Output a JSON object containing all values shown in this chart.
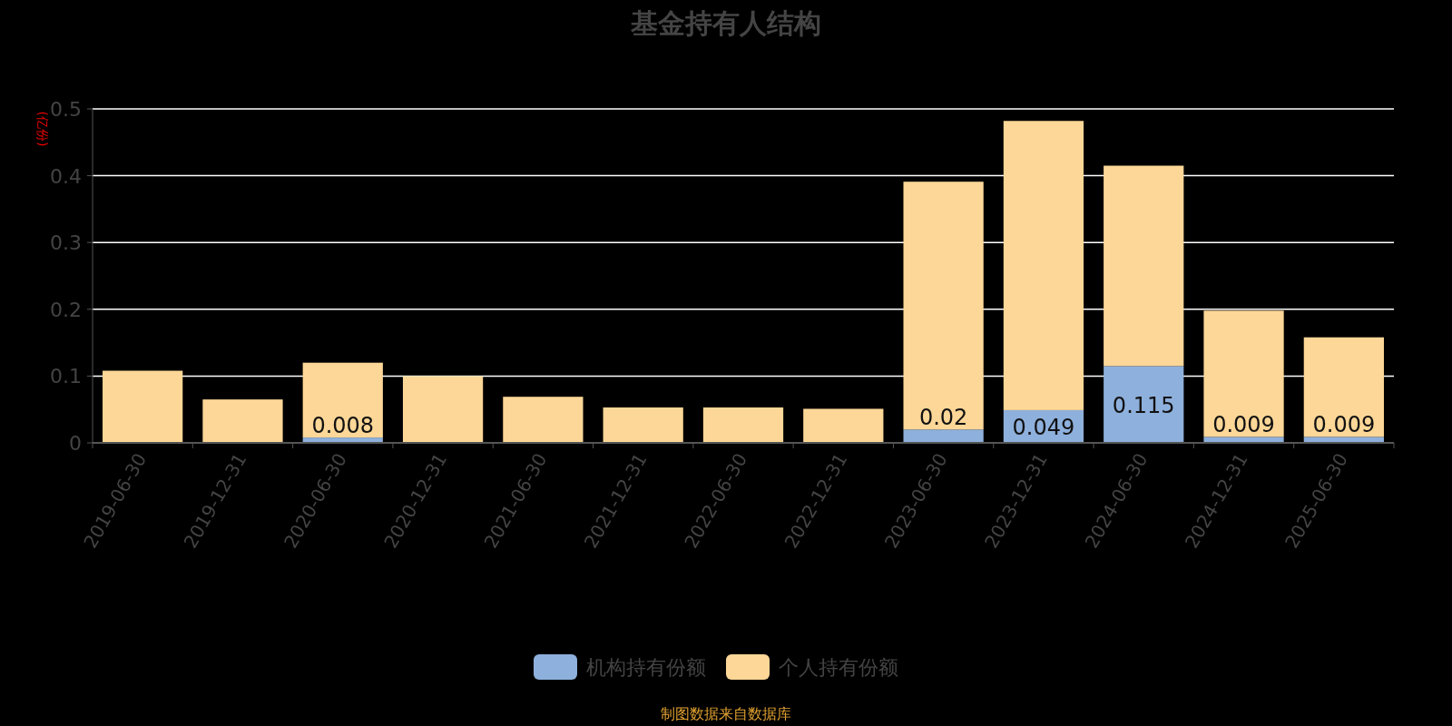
{
  "chart_data": {
    "type": "bar",
    "title": "基金持有人结构",
    "ylabel": "(亿份)",
    "categories": [
      "2019-06-30",
      "2019-12-31",
      "2020-06-30",
      "2020-12-31",
      "2021-06-30",
      "2021-12-31",
      "2022-06-30",
      "2022-12-31",
      "2023-06-30",
      "2023-12-31",
      "2024-06-30",
      "2024-12-31",
      "2025-06-30"
    ],
    "stacked": true,
    "ylim": [
      0,
      0.5
    ],
    "yticks": [
      0,
      0.1,
      0.2,
      0.3,
      0.4,
      0.5
    ],
    "grid": "y",
    "legend": "bottom",
    "series": [
      {
        "name": "机构持有份额",
        "color": "#8eb0dc",
        "values": [
          null,
          null,
          0.008,
          null,
          null,
          null,
          null,
          null,
          0.02,
          0.049,
          0.115,
          0.009,
          0.009
        ],
        "value_labels": [
          null,
          null,
          "0.008",
          null,
          null,
          null,
          null,
          null,
          "0.02",
          "0.049",
          "0.115",
          "0.009",
          "0.009"
        ]
      },
      {
        "name": "个人持有份额",
        "color": "#fdd797",
        "values": [
          0.108,
          0.065,
          0.112,
          0.1,
          0.069,
          0.053,
          0.053,
          0.051,
          0.371,
          0.433,
          0.3,
          0.189,
          0.149
        ]
      }
    ],
    "annotations": [
      "制图数据来自数据库"
    ]
  }
}
